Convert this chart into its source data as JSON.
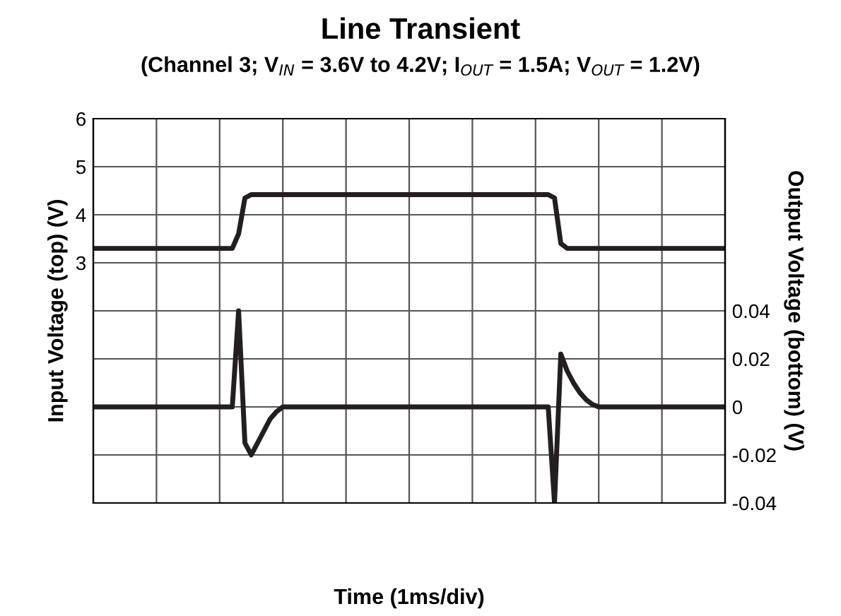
{
  "chart_data": {
    "type": "line",
    "title": "Line Transient",
    "subtitle": "(Channel 3; V$_{IN}$ = 3.6V to 4.2V; I$_{OUT}$ = 1.5A; V$_{OUT}$ = 1.2V)",
    "xlabel": "Time (1ms/div)",
    "ylabel": "Input Voltage (top) (V)",
    "y2label": "Output Voltage (bottom) (V)",
    "categories": [
      null,
      null,
      null,
      null,
      null,
      null,
      null,
      null,
      null,
      null,
      null,
      null,
      null,
      null,
      null,
      null,
      null,
      null,
      null,
      null,
      null,
      null,
      null,
      null,
      null,
      null,
      null,
      null,
      null,
      null,
      null,
      null,
      null,
      null,
      null,
      null,
      null,
      null,
      null,
      null,
      null,
      null,
      null,
      null,
      null,
      null,
      null,
      null,
      null,
      null,
      null,
      null,
      null,
      null,
      null,
      null,
      null,
      null,
      null,
      null,
      null,
      null,
      null,
      null,
      null,
      null,
      null,
      null,
      null,
      null,
      null,
      null,
      null,
      null,
      null,
      null,
      null,
      null,
      null,
      null,
      null,
      null,
      null,
      null,
      null,
      null,
      null,
      null,
      null,
      null,
      null,
      null,
      null,
      null,
      null,
      null,
      null,
      null,
      null,
      null,
      null
    ],
    "ylim": [
      -2,
      6
    ],
    "yticks": [
      {
        "value": -2,
        "label": null
      },
      {
        "value": -1,
        "label": null
      },
      {
        "value": 0,
        "label": null
      },
      {
        "value": 1,
        "label": null
      },
      {
        "value": 2,
        "label": null
      },
      3,
      4,
      5,
      6
    ],
    "y2lim": [
      -0.04,
      0.12
    ],
    "y2ticks": [
      -0.04,
      -0.02,
      0,
      0.02,
      0.04
    ],
    "grid": true,
    "line_style": "solid",
    "marker": "none",
    "series": [
      {
        "color": "#231f20",
        "values": [
          3.3,
          3.3,
          3.3,
          3.3,
          3.3,
          3.3,
          3.3,
          3.3,
          3.3,
          3.3,
          3.3,
          3.3,
          3.3,
          3.3,
          3.3,
          3.3,
          3.3,
          3.3,
          3.3,
          3.3,
          3.3,
          3.3,
          3.3,
          3.6,
          4.35,
          4.42,
          4.42,
          4.42,
          4.42,
          4.42,
          4.42,
          4.42,
          4.42,
          4.42,
          4.42,
          4.42,
          4.42,
          4.42,
          4.42,
          4.42,
          4.42,
          4.42,
          4.42,
          4.42,
          4.42,
          4.42,
          4.42,
          4.42,
          4.42,
          4.42,
          4.42,
          4.42,
          4.42,
          4.42,
          4.42,
          4.42,
          4.42,
          4.42,
          4.42,
          4.42,
          4.42,
          4.42,
          4.42,
          4.42,
          4.42,
          4.42,
          4.42,
          4.42,
          4.42,
          4.42,
          4.42,
          4.42,
          4.42,
          4.35,
          3.4,
          3.3,
          3.3,
          3.3,
          3.3,
          3.3,
          3.3,
          3.3,
          3.3,
          3.3,
          3.3,
          3.3,
          3.3,
          3.3,
          3.3,
          3.3,
          3.3,
          3.3,
          3.3,
          3.3,
          3.3,
          3.3,
          3.3,
          3.3,
          3.3,
          3.3,
          3.3
        ]
      },
      {
        "color": "#231f20",
        "axis": "y2",
        "values": [
          0,
          0,
          0,
          0,
          0,
          0,
          0,
          0,
          0,
          0,
          0,
          0,
          0,
          0,
          0,
          0,
          0,
          0,
          0,
          0,
          0,
          0,
          0,
          0.04,
          -0.015,
          -0.02,
          -0.015,
          -0.01,
          -0.005,
          -0.002,
          0,
          0,
          0,
          0,
          0,
          0,
          0,
          0,
          0,
          0,
          0,
          0,
          0,
          0,
          0,
          0,
          0,
          0,
          0,
          0,
          0,
          0,
          0,
          0,
          0,
          0,
          0,
          0,
          0,
          0,
          0,
          0,
          0,
          0,
          0,
          0,
          0,
          0,
          0,
          0,
          0,
          0,
          0,
          -0.04,
          0.022,
          0.015,
          0.01,
          0.006,
          0.003,
          0.001,
          0,
          0,
          0,
          0,
          0,
          0,
          0,
          0,
          0,
          0,
          0,
          0,
          0,
          0,
          0,
          0,
          0,
          0,
          0,
          0,
          0
        ]
      }
    ]
  }
}
